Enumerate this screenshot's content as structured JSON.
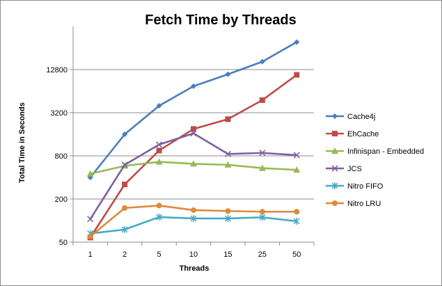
{
  "chart_data": {
    "type": "line",
    "title": "Fetch Time by Threads",
    "xlabel": "Threads",
    "ylabel": "Total Time in Seconds",
    "y_scale": "log2",
    "ylim": [
      50,
      51200
    ],
    "y_ticks": [
      "50",
      "200",
      "800",
      "3200",
      "12800"
    ],
    "categories": [
      "1",
      "2",
      "5",
      "10",
      "15",
      "25",
      "50"
    ],
    "grid": "horizontal",
    "legend_position": "right",
    "series": [
      {
        "name": "Cache4j",
        "color": "#4a7ebb",
        "marker": "diamond",
        "values": [
          400,
          1600,
          4000,
          7500,
          11000,
          16500,
          31000
        ]
      },
      {
        "name": "EhCache",
        "color": "#be4b48",
        "marker": "square",
        "values": [
          58,
          320,
          950,
          1900,
          2600,
          4800,
          10800
        ]
      },
      {
        "name": "Infinispan - Embedded",
        "color": "#98b954",
        "marker": "triangle",
        "values": [
          450,
          580,
          660,
          620,
          600,
          540,
          510
        ]
      },
      {
        "name": "JCS",
        "color": "#7d60a0",
        "marker": "x",
        "values": [
          105,
          600,
          1150,
          1650,
          850,
          880,
          820
        ]
      },
      {
        "name": "Nitro FIFO",
        "color": "#46aac5",
        "marker": "asterisk",
        "values": [
          66,
          75,
          112,
          107,
          107,
          111,
          98
        ]
      },
      {
        "name": "Nitro LRU",
        "color": "#dc8a3c",
        "marker": "circle",
        "values": [
          60,
          150,
          162,
          140,
          136,
          133,
          133
        ]
      }
    ]
  }
}
